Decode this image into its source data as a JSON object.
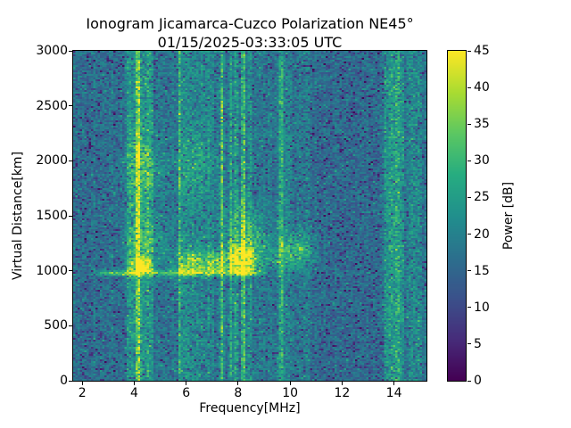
{
  "chart_data": {
    "type": "heatmap",
    "title": "Ionogram Jicamarca-Cuzco Polarization NE45°",
    "subtitle": "01/15/2025-03:33:05 UTC",
    "xlabel": "Frequency[MHz]",
    "ylabel": "Virtual Distance[km]",
    "colorbar_label": "Power [dB]",
    "xlim": [
      1.65,
      15.25
    ],
    "ylim": [
      0,
      3000
    ],
    "clim": [
      0,
      45
    ],
    "x_ticks": [
      2,
      4,
      6,
      8,
      10,
      12,
      14
    ],
    "y_ticks": [
      0,
      500,
      1000,
      1500,
      2000,
      2500,
      3000
    ],
    "colorbar_ticks": [
      0,
      5,
      10,
      15,
      20,
      25,
      30,
      35,
      40,
      45
    ],
    "grid": false,
    "legend": "colorbar-right",
    "colormap": "viridis",
    "colormap_stops": [
      [
        0.0,
        "#440154"
      ],
      [
        0.125,
        "#472d7b"
      ],
      [
        0.25,
        "#3b528b"
      ],
      [
        0.375,
        "#2c718e"
      ],
      [
        0.5,
        "#21908d"
      ],
      [
        0.625,
        "#27ad81"
      ],
      [
        0.75,
        "#5cc863"
      ],
      [
        0.875,
        "#aadc32"
      ],
      [
        1.0,
        "#fde725"
      ]
    ],
    "noise": {
      "mean_db": 18,
      "uniform_spread_db": 9,
      "dark_speckle_prob": 0.13,
      "dark_speckle_depth_db": 7,
      "bright_speckle_prob": 0.05,
      "column_streak_db": 2.5,
      "regions": [
        {
          "f0": 1.65,
          "f1": 3.6,
          "delta_db": -1.2
        },
        {
          "f0": 10.75,
          "f1": 13.55,
          "delta_db": -1.8
        }
      ]
    },
    "rfi_lines": [
      {
        "freq_mhz": 4.15,
        "amp_db": 21
      },
      {
        "freq_mhz": 4.65,
        "amp_db": 8
      },
      {
        "freq_mhz": 5.76,
        "amp_db": 15
      },
      {
        "freq_mhz": 7.38,
        "amp_db": 17
      },
      {
        "freq_mhz": 7.72,
        "amp_db": 9
      },
      {
        "freq_mhz": 7.93,
        "amp_db": 12
      },
      {
        "freq_mhz": 8.2,
        "amp_db": 18
      },
      {
        "freq_mhz": 8.45,
        "amp_db": 9
      },
      {
        "freq_mhz": 9.66,
        "amp_db": 12
      }
    ],
    "rfi_bands": [
      {
        "f0": 3.75,
        "f1": 4.55,
        "amp_db": 7
      },
      {
        "f0": 5.9,
        "f1": 7.05,
        "amp_db": 4
      },
      {
        "f0": 9.5,
        "f1": 10.1,
        "amp_db": 2.5
      },
      {
        "f0": 13.62,
        "f1": 14.38,
        "amp_db": 8
      },
      {
        "f0": 14.45,
        "f1": 15.1,
        "amp_db": 3
      }
    ],
    "echo_trace": {
      "km": 980,
      "sigma_km": 20,
      "f_start": 2.0,
      "f_end": 9.1,
      "amp_db": 13
    },
    "echo_blobs": [
      {
        "f": 4.3,
        "df": 0.3,
        "km": 1030,
        "dkm": 65,
        "amp_db": 26,
        "floor_km": 990
      },
      {
        "f": 4.45,
        "df": 0.55,
        "km": 1260,
        "dkm": 170,
        "amp_db": 9,
        "floor_km": 990
      },
      {
        "f": 6.25,
        "df": 0.45,
        "km": 1060,
        "dkm": 85,
        "amp_db": 17,
        "floor_km": 990
      },
      {
        "f": 7.1,
        "df": 0.28,
        "km": 1070,
        "dkm": 75,
        "amp_db": 13,
        "floor_km": 990
      },
      {
        "f": 8.15,
        "df": 0.45,
        "km": 1090,
        "dkm": 105,
        "amp_db": 27,
        "floor_km": 990
      },
      {
        "f": 8.3,
        "df": 0.55,
        "km": 1360,
        "dkm": 170,
        "amp_db": 9,
        "floor_km": 990
      },
      {
        "f": 9.4,
        "df": 0.5,
        "km": 1150,
        "dkm": 120,
        "amp_db": 6,
        "floor_km": 990
      },
      {
        "f": 10.35,
        "df": 0.42,
        "km": 1190,
        "dkm": 115,
        "amp_db": 12,
        "floor_km": 990
      },
      {
        "f": 4.35,
        "df": 0.5,
        "km": 1950,
        "dkm": 210,
        "amp_db": 9
      },
      {
        "f": 6.35,
        "df": 0.55,
        "km": 1950,
        "dkm": 230,
        "amp_db": 5
      }
    ],
    "seed": 42
  }
}
